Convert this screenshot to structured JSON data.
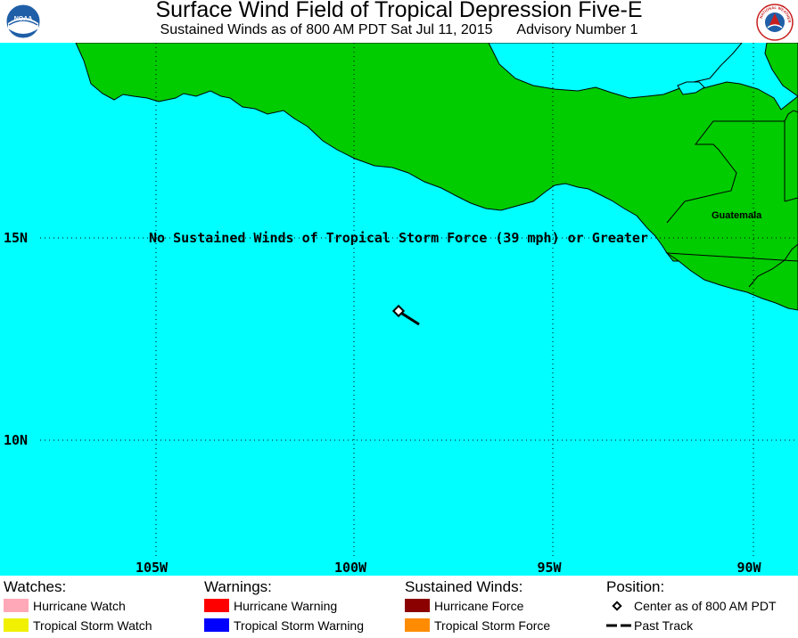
{
  "header": {
    "title": "Surface Wind Field of Tropical Depression Five-E",
    "subtitle_time": "Sustained Winds as of 800 AM PDT Sat Jul 11, 2015",
    "subtitle_advisory": "Advisory Number 1",
    "noaa_logo_text": "NOAA",
    "nws_logo_text": "NATIONAL WEATHER SERVICE"
  },
  "map": {
    "ocean_color": "#00FFFF",
    "land_color": "#00CC00",
    "message": "No Sustained Winds of Tropical Storm Force (39 mph) or Greater",
    "country_label": "Guatemala",
    "lat_labels": [
      "15N",
      "10N"
    ],
    "lon_labels": [
      "105W",
      "100W",
      "95W",
      "90W"
    ]
  },
  "legend": {
    "watches": {
      "heading": "Watches:",
      "items": [
        {
          "label": "Hurricane Watch",
          "color": "#FFA8B8"
        },
        {
          "label": "Tropical Storm Watch",
          "color": "#F0F000"
        }
      ]
    },
    "warnings": {
      "heading": "Warnings:",
      "items": [
        {
          "label": "Hurricane Warning",
          "color": "#FF0000"
        },
        {
          "label": "Tropical Storm Warning",
          "color": "#0000FF"
        }
      ]
    },
    "winds": {
      "heading": "Sustained Winds:",
      "items": [
        {
          "label": "Hurricane Force",
          "color": "#8B0000"
        },
        {
          "label": "Tropical Storm Force",
          "color": "#FF8C00"
        }
      ]
    },
    "position": {
      "heading": "Position:",
      "items": [
        {
          "label": "Center as of 800 AM PDT",
          "icon": "diamond-icon"
        },
        {
          "label": "Past Track",
          "icon": "dashed-line-icon"
        }
      ]
    }
  }
}
